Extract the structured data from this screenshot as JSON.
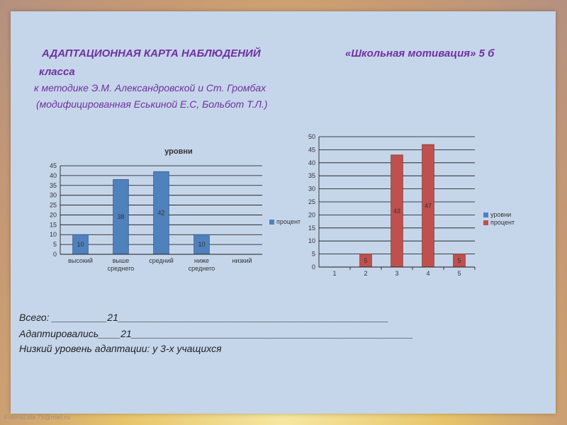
{
  "header": {
    "title_left": "АДАПТАЦИОННАЯ КАРТА НАБЛЮДЕНИЙ",
    "title_right": "«Школьная мотивация» 5 б",
    "title_cont": "класса",
    "method_line": "к методике Э.М. Александровской и Ст. Громбах",
    "modified_line": "(модифицированная Еськиной Е.С, Больбот Т.Л.)"
  },
  "chart_data": [
    {
      "type": "bar",
      "title": "уровни",
      "categories": [
        "высокий",
        "выше\nсреднего",
        "средний",
        "ниже\nсреднего",
        "низкий"
      ],
      "series": [
        {
          "name": "процент",
          "values": [
            10,
            38,
            42,
            10,
            null
          ],
          "color": "#4f81bd"
        }
      ],
      "data_labels": [
        "10",
        "38",
        "42",
        "10",
        ""
      ],
      "ylim": [
        0,
        45
      ],
      "yticks": [
        0,
        5,
        10,
        15,
        20,
        25,
        30,
        35,
        40,
        45
      ],
      "grid": true,
      "legend": "right"
    },
    {
      "type": "bar",
      "title": "",
      "categories": [
        "1",
        "2",
        "3",
        "4",
        "5"
      ],
      "series": [
        {
          "name": "уровни",
          "values": [
            0,
            0,
            0,
            0,
            0
          ],
          "color": "#4f81bd"
        },
        {
          "name": "процент",
          "values": [
            null,
            5,
            43,
            47,
            5
          ],
          "color": "#c0504d"
        }
      ],
      "data_labels": [
        "",
        "5",
        "43",
        "47",
        "5"
      ],
      "ylim": [
        0,
        50
      ],
      "yticks": [
        0,
        5,
        10,
        15,
        20,
        25,
        30,
        35,
        40,
        45,
        50
      ],
      "grid": true,
      "legend": "right"
    }
  ],
  "summary": {
    "total": "Всего: __________21_________________________________________________",
    "adapted": "Адаптировались____21___________________________________________________",
    "low": "Низкий уровень адаптации: у 3-х учащихся"
  },
  "footer": {
    "email": "FokinaLida.75@mail.ru"
  }
}
